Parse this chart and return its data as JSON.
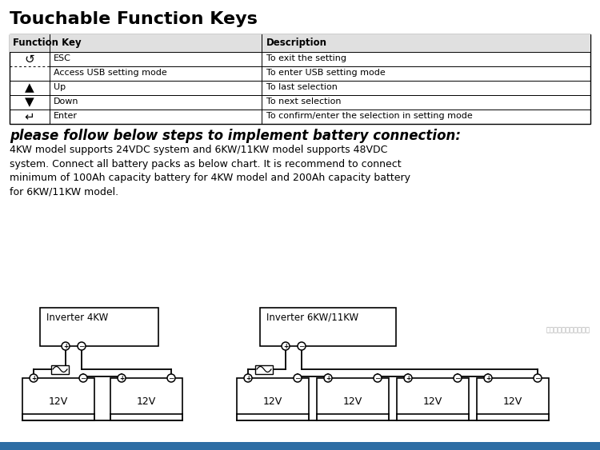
{
  "title": "Touchable Function Keys",
  "table_header": [
    "Function Key",
    "Description"
  ],
  "row_data": [
    [
      "↺",
      "ESC",
      "To exit the setting"
    ],
    [
      "",
      "Access USB setting mode",
      "To enter USB setting mode"
    ],
    [
      "▲",
      "Up",
      "To last selection"
    ],
    [
      "▼",
      "Down",
      "To next selection"
    ],
    [
      "↵",
      "Enter",
      "To confirm/enter the selection in setting mode"
    ]
  ],
  "subtitle": "please follow below steps to implement battery connection:",
  "body_text": "4KW model supports 24VDC system and 6KW/11KW model supports 48VDC\nsystem. Connect all battery packs as below chart. It is recommend to connect\nminimum of 100Ah capacity battery for 4KW model and 200Ah capacity battery\nfor 6KW/11KW model.",
  "inverter1_label": "Inverter 4KW",
  "inverter2_label": "Inverter 6KW/11KW",
  "battery_label": "12V",
  "watermark": "深圳吉自达科技有限公司",
  "bg_color": "#ffffff",
  "bar_color": "#2e6da4",
  "text_color": "#000000"
}
